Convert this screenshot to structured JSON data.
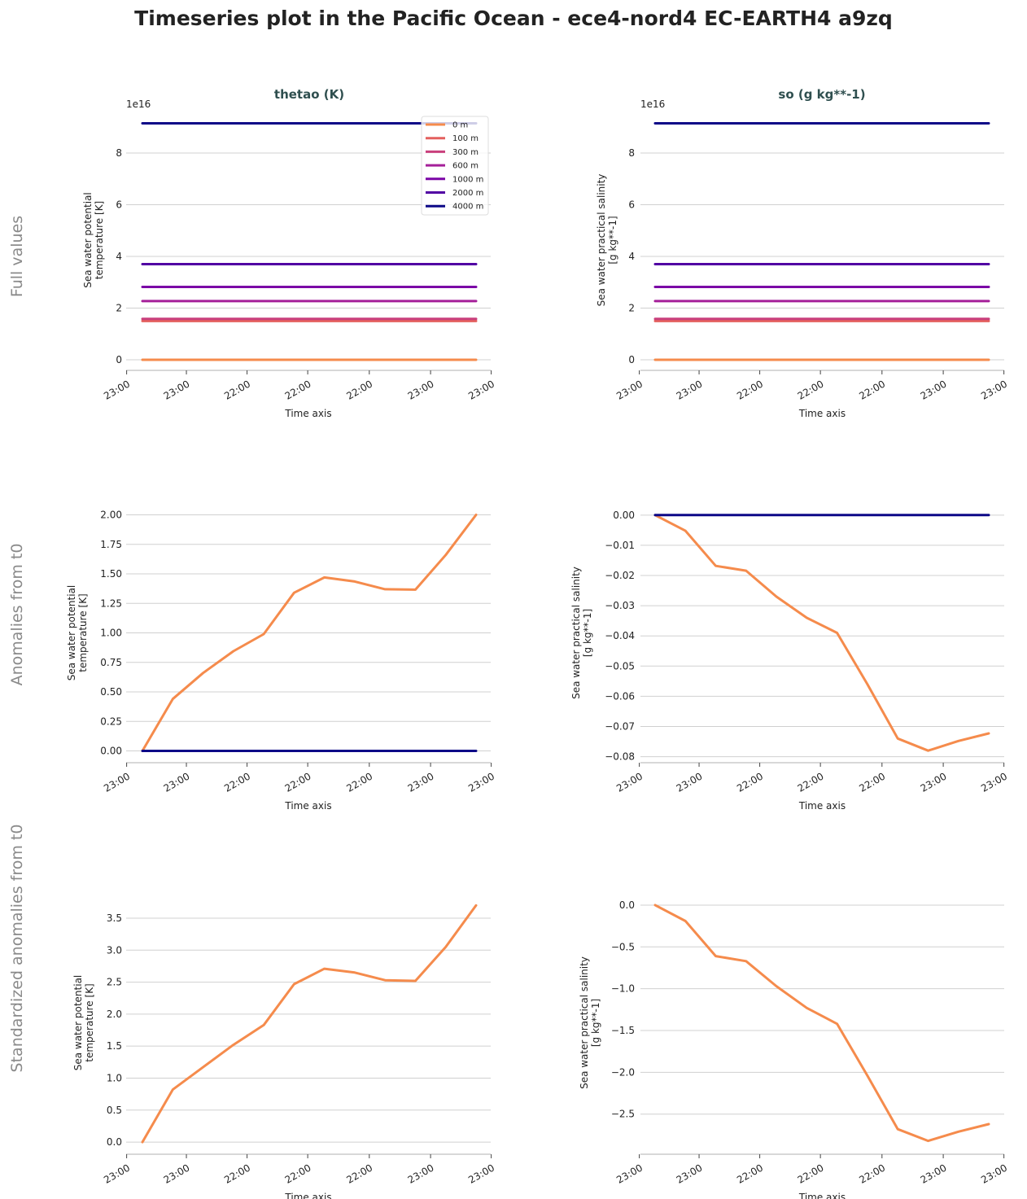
{
  "title": "Timeseries plot in the Pacific Ocean - ece4-nord4 EC-EARTH4 a9zq",
  "columns": [
    "thetao (K)",
    "so (g kg**-1)"
  ],
  "rows": [
    "Full values",
    "Anomalies from t0",
    "Standardized anomalies from t0"
  ],
  "colors": {
    "grid": "#d0d0d0",
    "axis": "#b0b0b0",
    "column_title": "#2f4f4f",
    "row_title": "#8a8a8a"
  },
  "legend": {
    "placement": "top-right of first panel",
    "entries": [
      "0 m",
      "100 m",
      "300 m",
      "600 m",
      "1000 m",
      "2000 m",
      "4000 m"
    ]
  },
  "chart_data": [
    {
      "type": "line",
      "row": 0,
      "col": 0,
      "ylabel": [
        "Sea water potential",
        "temperature [K]"
      ],
      "xlabel": "Time axis",
      "offset_text": "1e16",
      "ylim": [
        -0.41,
        9.67
      ],
      "yticks": [
        0,
        2,
        4,
        6,
        8
      ],
      "ytick_labels": [
        "0",
        "2",
        "4",
        "6",
        "8"
      ],
      "xtick_labels": [
        "23:00",
        "23:00",
        "22:00",
        "22:00",
        "22:00",
        "23:00",
        "23:00"
      ],
      "grid": true,
      "series": [
        {
          "name": "0 m",
          "color": "#f58b4c",
          "values": [
            0,
            0,
            0,
            0,
            0,
            0,
            0,
            0,
            0,
            0,
            0,
            0
          ]
        },
        {
          "name": "100 m",
          "color": "#e4605e",
          "values": [
            1.5,
            1.5,
            1.5,
            1.5,
            1.5,
            1.5,
            1.5,
            1.5,
            1.5,
            1.5,
            1.5,
            1.5
          ]
        },
        {
          "name": "300 m",
          "color": "#c93f7c",
          "values": [
            1.58,
            1.58,
            1.58,
            1.58,
            1.58,
            1.58,
            1.58,
            1.58,
            1.58,
            1.58,
            1.58,
            1.58
          ]
        },
        {
          "name": "600 m",
          "color": "#a51f99",
          "values": [
            2.27,
            2.27,
            2.27,
            2.27,
            2.27,
            2.27,
            2.27,
            2.27,
            2.27,
            2.27,
            2.27,
            2.27
          ]
        },
        {
          "name": "1000 m",
          "color": "#7b05a6",
          "values": [
            2.82,
            2.82,
            2.82,
            2.82,
            2.82,
            2.82,
            2.82,
            2.82,
            2.82,
            2.82,
            2.82,
            2.82
          ]
        },
        {
          "name": "2000 m",
          "color": "#5102a3",
          "values": [
            3.7,
            3.7,
            3.7,
            3.7,
            3.7,
            3.7,
            3.7,
            3.7,
            3.7,
            3.7,
            3.7,
            3.7
          ]
        },
        {
          "name": "4000 m",
          "color": "#0d0887",
          "values": [
            9.15,
            9.15,
            9.15,
            9.15,
            9.15,
            9.15,
            9.15,
            9.15,
            9.15,
            9.15,
            9.15,
            9.15
          ]
        }
      ]
    },
    {
      "type": "line",
      "row": 0,
      "col": 1,
      "ylabel": [
        "Sea water practical salinity",
        "[g kg**-1]"
      ],
      "xlabel": "Time axis",
      "offset_text": "1e16",
      "ylim": [
        -0.41,
        9.67
      ],
      "yticks": [
        0,
        2,
        4,
        6,
        8
      ],
      "ytick_labels": [
        "0",
        "2",
        "4",
        "6",
        "8"
      ],
      "xtick_labels": [
        "23:00",
        "23:00",
        "22:00",
        "22:00",
        "22:00",
        "23:00",
        "23:00"
      ],
      "grid": true,
      "series": [
        {
          "name": "0 m",
          "color": "#f58b4c",
          "values": [
            0,
            0,
            0,
            0,
            0,
            0,
            0,
            0,
            0,
            0,
            0,
            0
          ]
        },
        {
          "name": "100 m",
          "color": "#e4605e",
          "values": [
            1.5,
            1.5,
            1.5,
            1.5,
            1.5,
            1.5,
            1.5,
            1.5,
            1.5,
            1.5,
            1.5,
            1.5
          ]
        },
        {
          "name": "300 m",
          "color": "#c93f7c",
          "values": [
            1.58,
            1.58,
            1.58,
            1.58,
            1.58,
            1.58,
            1.58,
            1.58,
            1.58,
            1.58,
            1.58,
            1.58
          ]
        },
        {
          "name": "600 m",
          "color": "#a51f99",
          "values": [
            2.27,
            2.27,
            2.27,
            2.27,
            2.27,
            2.27,
            2.27,
            2.27,
            2.27,
            2.27,
            2.27,
            2.27
          ]
        },
        {
          "name": "1000 m",
          "color": "#7b05a6",
          "values": [
            2.82,
            2.82,
            2.82,
            2.82,
            2.82,
            2.82,
            2.82,
            2.82,
            2.82,
            2.82,
            2.82,
            2.82
          ]
        },
        {
          "name": "2000 m",
          "color": "#5102a3",
          "values": [
            3.7,
            3.7,
            3.7,
            3.7,
            3.7,
            3.7,
            3.7,
            3.7,
            3.7,
            3.7,
            3.7,
            3.7
          ]
        },
        {
          "name": "4000 m",
          "color": "#0d0887",
          "values": [
            9.15,
            9.15,
            9.15,
            9.15,
            9.15,
            9.15,
            9.15,
            9.15,
            9.15,
            9.15,
            9.15,
            9.15
          ]
        }
      ]
    },
    {
      "type": "line",
      "row": 1,
      "col": 0,
      "ylabel": [
        "Sea water potential",
        "temperature [K]"
      ],
      "xlabel": "Time axis",
      "ylim": [
        -0.1,
        2.1
      ],
      "yticks": [
        0,
        0.25,
        0.5,
        0.75,
        1,
        1.25,
        1.5,
        1.75,
        2
      ],
      "ytick_labels": [
        "0.00",
        "0.25",
        "0.50",
        "0.75",
        "1.00",
        "1.25",
        "1.50",
        "1.75",
        "2.00"
      ],
      "xtick_labels": [
        "23:00",
        "23:00",
        "22:00",
        "22:00",
        "22:00",
        "23:00",
        "23:00"
      ],
      "grid": true,
      "series": [
        {
          "name": "0 m",
          "color": "#f58b4c",
          "values": [
            0,
            0.44,
            0.66,
            0.845,
            0.99,
            1.34,
            1.47,
            1.435,
            1.37,
            1.366,
            1.66,
            2.0
          ]
        },
        {
          "name": "4000 m",
          "color": "#0d0887",
          "values": [
            0,
            0,
            0,
            0,
            0,
            0,
            0,
            0,
            0,
            0,
            0,
            0
          ]
        }
      ]
    },
    {
      "type": "line",
      "row": 1,
      "col": 1,
      "ylabel": [
        "Sea water practical salinity",
        "[g kg**-1]"
      ],
      "xlabel": "Time axis",
      "ylim": [
        -0.082,
        0.004
      ],
      "yticks": [
        0,
        -0.01,
        -0.02,
        -0.03,
        -0.04,
        -0.05,
        -0.06,
        -0.07,
        -0.08
      ],
      "ytick_labels": [
        "0.00",
        "−0.01",
        "−0.02",
        "−0.03",
        "−0.04",
        "−0.05",
        "−0.06",
        "−0.07",
        "−0.08"
      ],
      "xtick_labels": [
        "23:00",
        "23:00",
        "22:00",
        "22:00",
        "22:00",
        "23:00",
        "23:00"
      ],
      "grid": true,
      "series": [
        {
          "name": "0 m",
          "color": "#f58b4c",
          "values": [
            0,
            -0.0052,
            -0.0168,
            -0.0184,
            -0.027,
            -0.034,
            -0.039,
            -0.056,
            -0.074,
            -0.078,
            -0.0748,
            -0.0723
          ]
        },
        {
          "name": "4000 m",
          "color": "#0d0887",
          "values": [
            0,
            0,
            0,
            0,
            0,
            0,
            0,
            0,
            0,
            0,
            0,
            0
          ]
        }
      ]
    },
    {
      "type": "line",
      "row": 2,
      "col": 0,
      "ylabel": [
        "Sea water potential",
        "temperature [K]"
      ],
      "xlabel": "Time axis",
      "ylim": [
        -0.19,
        3.92
      ],
      "yticks": [
        0,
        0.5,
        1,
        1.5,
        2,
        2.5,
        3,
        3.5
      ],
      "ytick_labels": [
        "0.0",
        "0.5",
        "1.0",
        "1.5",
        "2.0",
        "2.5",
        "3.0",
        "3.5"
      ],
      "xtick_labels": [
        "23:00",
        "23:00",
        "22:00",
        "22:00",
        "22:00",
        "23:00",
        "23:00"
      ],
      "grid": true,
      "series": [
        {
          "name": "0 m",
          "color": "#f58b4c",
          "values": [
            0,
            0.82,
            1.17,
            1.52,
            1.83,
            2.47,
            2.71,
            2.65,
            2.53,
            2.52,
            3.05,
            3.7
          ]
        }
      ]
    },
    {
      "type": "line",
      "row": 2,
      "col": 1,
      "ylabel": [
        "Sea water practical salinity",
        "[g kg**-1]"
      ],
      "xlabel": "Time axis",
      "ylim": [
        -2.98,
        0.165
      ],
      "yticks": [
        0,
        -0.5,
        -1,
        -1.5,
        -2,
        -2.5
      ],
      "ytick_labels": [
        "0.0",
        "−0.5",
        "−1.0",
        "−1.5",
        "−2.0",
        "−2.5"
      ],
      "xtick_labels": [
        "23:00",
        "23:00",
        "22:00",
        "22:00",
        "22:00",
        "23:00",
        "23:00"
      ],
      "grid": true,
      "series": [
        {
          "name": "0 m",
          "color": "#f58b4c",
          "values": [
            0,
            -0.19,
            -0.61,
            -0.67,
            -0.97,
            -1.23,
            -1.42,
            -2.04,
            -2.68,
            -2.82,
            -2.71,
            -2.62
          ]
        }
      ]
    }
  ]
}
